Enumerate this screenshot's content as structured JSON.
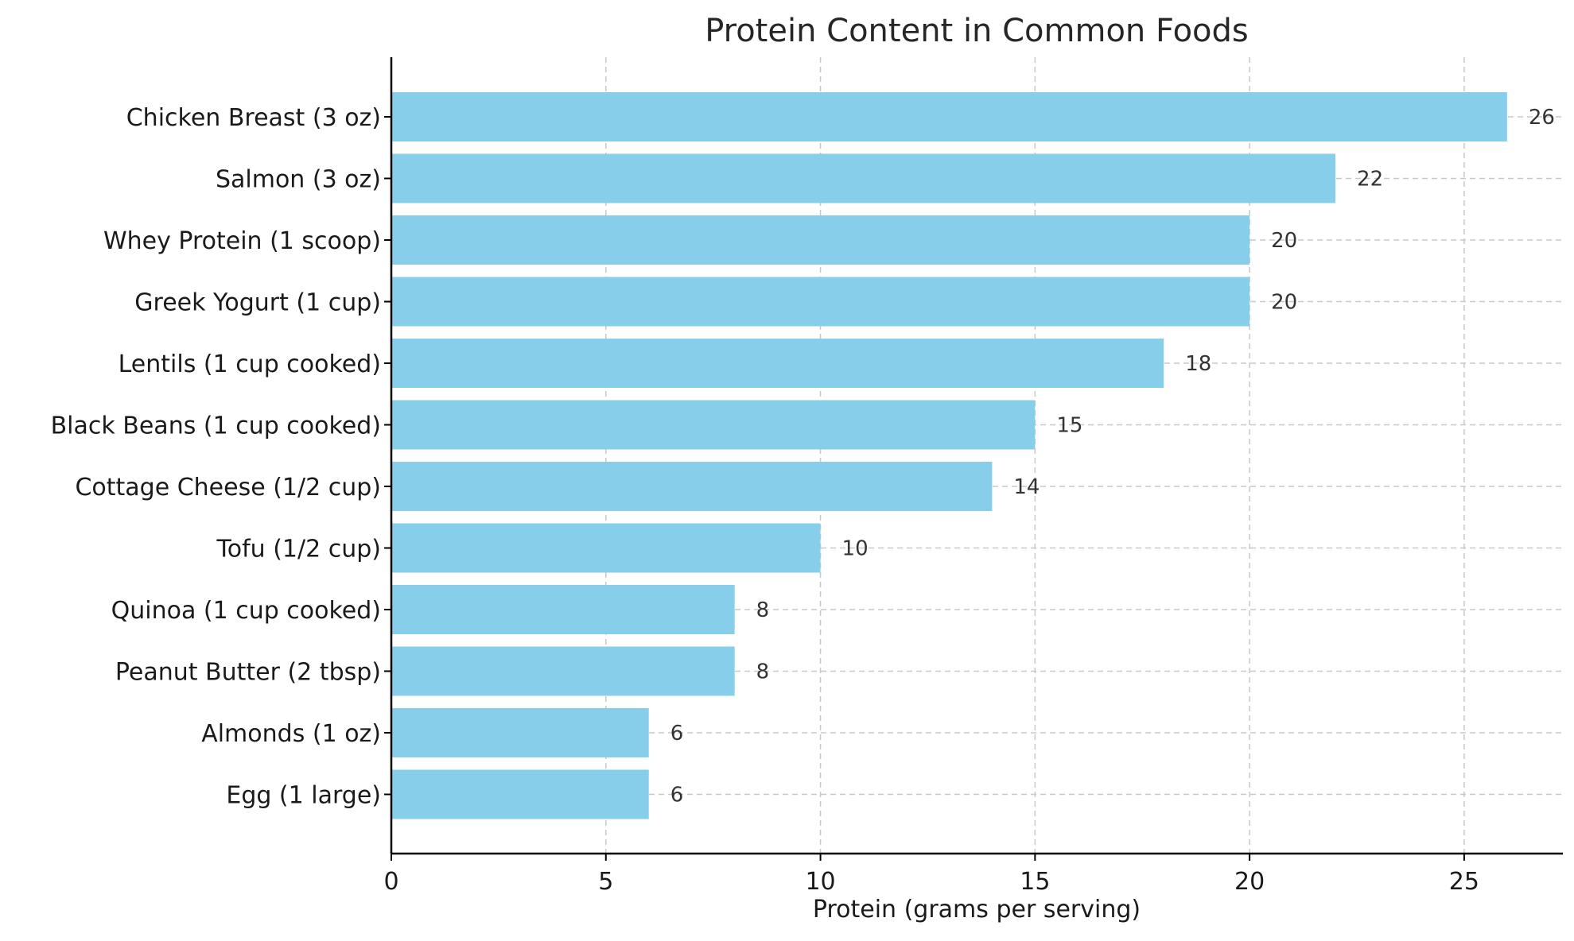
{
  "chart_data": {
    "type": "bar",
    "orientation": "horizontal",
    "title": "Protein Content in Common Foods",
    "xlabel": "Protein (grams per serving)",
    "ylabel": "",
    "xlim": [
      0,
      27.3
    ],
    "xticks": [
      "0",
      "5",
      "10",
      "15",
      "20",
      "25"
    ],
    "grid": true,
    "bar_color": "#87CEEB",
    "categories": [
      "Chicken Breast (3 oz)",
      "Salmon (3 oz)",
      "Whey Protein (1 scoop)",
      "Greek Yogurt (1 cup)",
      "Lentils (1 cup cooked)",
      "Black Beans (1 cup cooked)",
      "Cottage Cheese (1/2 cup)",
      "Tofu (1/2 cup)",
      "Quinoa (1 cup cooked)",
      "Peanut Butter (2 tbsp)",
      "Almonds (1 oz)",
      "Egg (1 large)"
    ],
    "values": [
      26,
      22,
      20,
      20,
      18,
      15,
      14,
      10,
      8,
      8,
      6,
      6
    ],
    "value_labels": [
      "26",
      "22",
      "20",
      "20",
      "18",
      "15",
      "14",
      "10",
      "8",
      "8",
      "6",
      "6"
    ]
  }
}
